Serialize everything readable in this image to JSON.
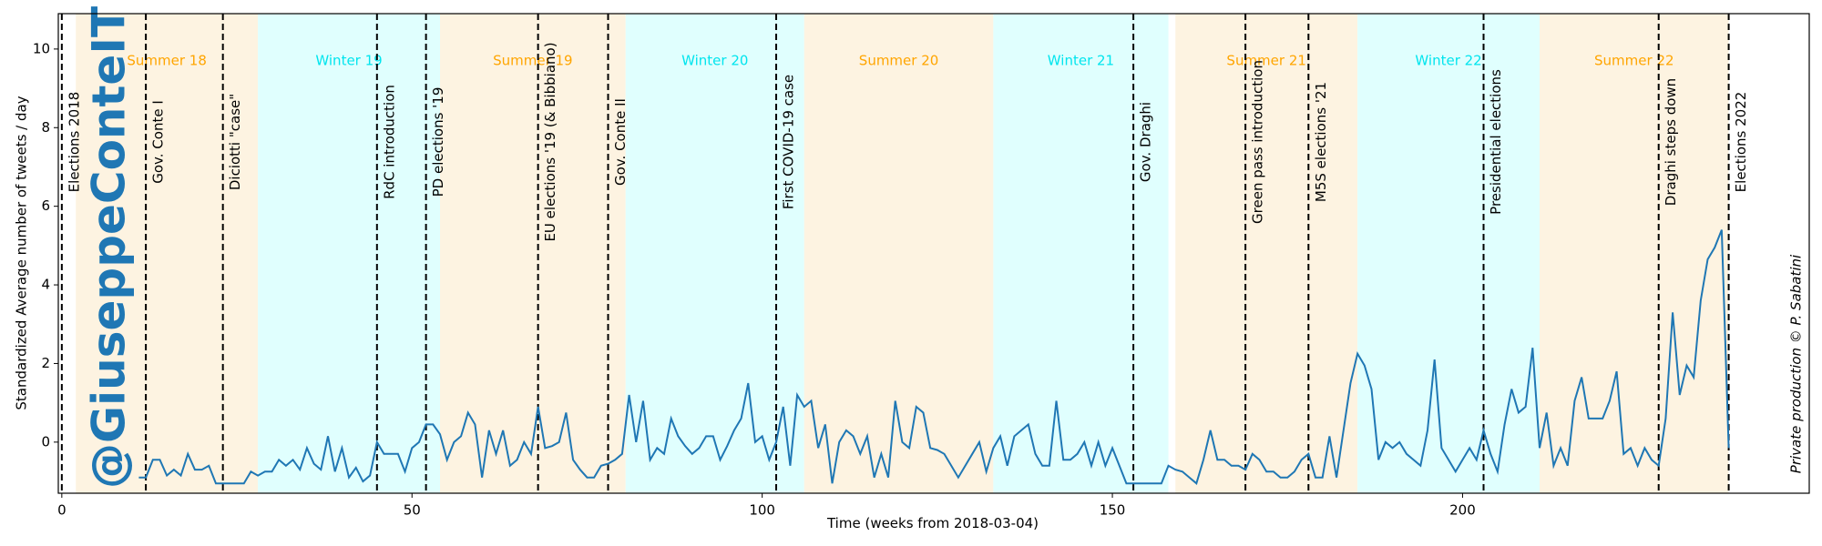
{
  "chart_data": {
    "type": "line",
    "xlabel": "Time (weeks from 2018-03-04)",
    "ylabel": "Standardized Average number of tweets / day",
    "watermark": "@GiuseppeConteIT",
    "credit": "Private production © P. Sabatini",
    "xlim": [
      -0.5,
      249.5
    ],
    "ylim": [
      -1.3,
      10.9
    ],
    "xticks": [
      0,
      50,
      100,
      150,
      200
    ],
    "yticks": [
      0,
      2,
      4,
      6,
      8,
      10
    ],
    "color": "#1f77b4",
    "periods": [
      {
        "label": "Summer 18",
        "start": 2,
        "end": 28,
        "color": "#fdf3e1",
        "label_color": "#ffa500"
      },
      {
        "label": "Winter 19",
        "start": 28,
        "end": 54,
        "color": "#e0fffe",
        "label_color": "#00e5ee"
      },
      {
        "label": "Summer 19",
        "start": 54,
        "end": 80.5,
        "color": "#fdf3e1",
        "label_color": "#ffa500"
      },
      {
        "label": "Winter 20",
        "start": 80.5,
        "end": 106,
        "color": "#e0fffe",
        "label_color": "#00e5ee"
      },
      {
        "label": "Summer 20",
        "start": 106,
        "end": 133,
        "color": "#fdf3e1",
        "label_color": "#ffa500"
      },
      {
        "label": "Winter 21",
        "start": 133,
        "end": 158,
        "color": "#e0fffe",
        "label_color": "#00e5ee"
      },
      {
        "label": "Summer 21",
        "start": 159,
        "end": 185,
        "color": "#fdf3e1",
        "label_color": "#ffa500"
      },
      {
        "label": "Winter 22",
        "start": 185,
        "end": 211,
        "color": "#e0fffe",
        "label_color": "#00e5ee"
      },
      {
        "label": "Summer 22",
        "start": 211,
        "end": 238,
        "color": "#fdf3e1",
        "label_color": "#ffa500"
      }
    ],
    "events": [
      {
        "label": "Elections 2018",
        "x": 0
      },
      {
        "label": "Gov. Conte I",
        "x": 12
      },
      {
        "label": "Diciotti \"case\"",
        "x": 23
      },
      {
        "label": "RdC introduction",
        "x": 45
      },
      {
        "label": "PD elections '19",
        "x": 52
      },
      {
        "label": "EU elections '19 (& Bibbiano)",
        "x": 68
      },
      {
        "label": "Gov. Conte II",
        "x": 78
      },
      {
        "label": "First COVID-19 case",
        "x": 102
      },
      {
        "label": "Gov. Draghi",
        "x": 153
      },
      {
        "label": "Green pass introduction",
        "x": 169
      },
      {
        "label": "M5S elections '21",
        "x": 178
      },
      {
        "label": "Presidential elections",
        "x": 203
      },
      {
        "label": "Draghi steps down",
        "x": 228
      },
      {
        "label": "Elections 2022",
        "x": 238
      }
    ],
    "x": [
      11,
      12,
      13,
      14,
      15,
      16,
      17,
      18,
      19,
      20,
      21,
      22,
      23,
      24,
      25,
      26,
      27,
      28,
      29,
      30,
      31,
      32,
      33,
      34,
      35,
      36,
      37,
      38,
      39,
      40,
      41,
      42,
      43,
      44,
      45,
      46,
      47,
      48,
      49,
      50,
      51,
      52,
      53,
      54,
      55,
      56,
      57,
      58,
      59,
      60,
      61,
      62,
      63,
      64,
      65,
      66,
      67,
      68,
      69,
      70,
      71,
      72,
      73,
      74,
      75,
      76,
      77,
      78,
      79,
      80,
      81,
      82,
      83,
      84,
      85,
      86,
      87,
      88,
      89,
      90,
      91,
      92,
      93,
      94,
      95,
      96,
      97,
      98,
      99,
      100,
      101,
      102,
      103,
      104,
      105,
      106,
      107,
      108,
      109,
      110,
      111,
      112,
      113,
      114,
      115,
      116,
      117,
      118,
      119,
      120,
      121,
      122,
      123,
      124,
      125,
      126,
      127,
      128,
      129,
      130,
      131,
      132,
      133,
      134,
      135,
      136,
      137,
      138,
      139,
      140,
      141,
      142,
      143,
      144,
      145,
      146,
      147,
      148,
      149,
      150,
      151,
      152,
      153,
      154,
      155,
      156,
      157,
      158,
      159,
      160,
      161,
      162,
      163,
      164,
      165,
      166,
      167,
      168,
      169,
      170,
      171,
      172,
      173,
      174,
      175,
      176,
      177,
      178,
      179,
      180,
      181,
      182,
      183,
      184,
      185,
      186,
      187,
      188,
      189,
      190,
      191,
      192,
      193,
      194,
      195,
      196,
      197,
      198,
      199,
      200,
      201,
      202,
      203,
      204,
      205,
      206,
      207,
      208,
      209,
      210,
      211,
      212,
      213,
      214,
      215,
      216,
      217,
      218,
      219,
      220,
      221,
      222,
      223,
      224,
      225,
      226,
      227,
      228,
      229,
      230,
      231,
      232,
      233,
      234,
      235,
      236,
      237,
      238
    ],
    "values": [
      -0.9,
      -0.9,
      -0.45,
      -0.45,
      -0.85,
      -0.7,
      -0.85,
      -0.3,
      -0.7,
      -0.7,
      -0.6,
      -1.05,
      -1.05,
      -1.05,
      -1.05,
      -1.05,
      -0.75,
      -0.85,
      -0.75,
      -0.75,
      -0.45,
      -0.6,
      -0.45,
      -0.7,
      -0.15,
      -0.55,
      -0.7,
      0.15,
      -0.75,
      -0.15,
      -0.9,
      -0.65,
      -1.0,
      -0.85,
      0.0,
      -0.3,
      -0.3,
      -0.3,
      -0.75,
      -0.15,
      0.0,
      0.45,
      0.45,
      0.2,
      -0.45,
      0.0,
      0.15,
      0.75,
      0.45,
      -0.9,
      0.3,
      -0.3,
      0.3,
      -0.6,
      -0.45,
      0.0,
      -0.3,
      0.9,
      -0.15,
      -0.1,
      0.0,
      0.75,
      -0.45,
      -0.7,
      -0.9,
      -0.9,
      -0.6,
      -0.55,
      -0.45,
      -0.3,
      1.2,
      0.0,
      1.05,
      -0.45,
      -0.15,
      -0.3,
      0.6,
      0.15,
      -0.1,
      -0.3,
      -0.15,
      0.15,
      0.15,
      -0.45,
      -0.1,
      0.3,
      0.6,
      1.5,
      0.0,
      0.15,
      -0.45,
      0.0,
      0.9,
      -0.6,
      1.2,
      0.9,
      1.05,
      -0.15,
      0.45,
      -1.05,
      0.0,
      0.3,
      0.15,
      -0.3,
      0.15,
      -0.9,
      -0.3,
      -0.9,
      1.05,
      0.0,
      -0.15,
      0.9,
      0.75,
      -0.15,
      -0.2,
      -0.3,
      -0.6,
      -0.9,
      -0.6,
      -0.3,
      0.0,
      -0.75,
      -0.15,
      0.15,
      -0.6,
      0.15,
      0.3,
      0.45,
      -0.3,
      -0.6,
      -0.6,
      1.05,
      -0.45,
      -0.45,
      -0.3,
      0.0,
      -0.6,
      0.0,
      -0.6,
      -0.15,
      -0.6,
      -1.05,
      -1.05,
      -1.05,
      -1.05,
      -1.05,
      -1.05,
      -0.6,
      -0.7,
      -0.75,
      -0.9,
      -1.05,
      -0.45,
      0.3,
      -0.45,
      -0.45,
      -0.6,
      -0.6,
      -0.7,
      -0.3,
      -0.45,
      -0.75,
      -0.75,
      -0.9,
      -0.9,
      -0.75,
      -0.45,
      -0.3,
      -0.9,
      -0.9,
      0.15,
      -0.9,
      0.3,
      1.5,
      2.25,
      1.95,
      1.35,
      -0.45,
      0.0,
      -0.15,
      0.0,
      -0.3,
      -0.45,
      -0.6,
      0.3,
      2.1,
      -0.15,
      -0.45,
      -0.75,
      -0.45,
      -0.15,
      -0.45,
      0.3,
      -0.3,
      -0.75,
      0.45,
      1.35,
      0.75,
      0.9,
      2.4,
      -0.15,
      0.75,
      -0.6,
      -0.15,
      -0.6,
      1.05,
      1.65,
      0.6,
      0.6,
      0.6,
      1.05,
      1.8,
      -0.3,
      -0.15,
      -0.6,
      -0.15,
      -0.45,
      -0.6,
      0.6,
      3.3,
      1.2,
      1.95,
      1.65,
      3.6,
      4.65,
      4.95,
      5.4,
      -0.15
    ]
  }
}
